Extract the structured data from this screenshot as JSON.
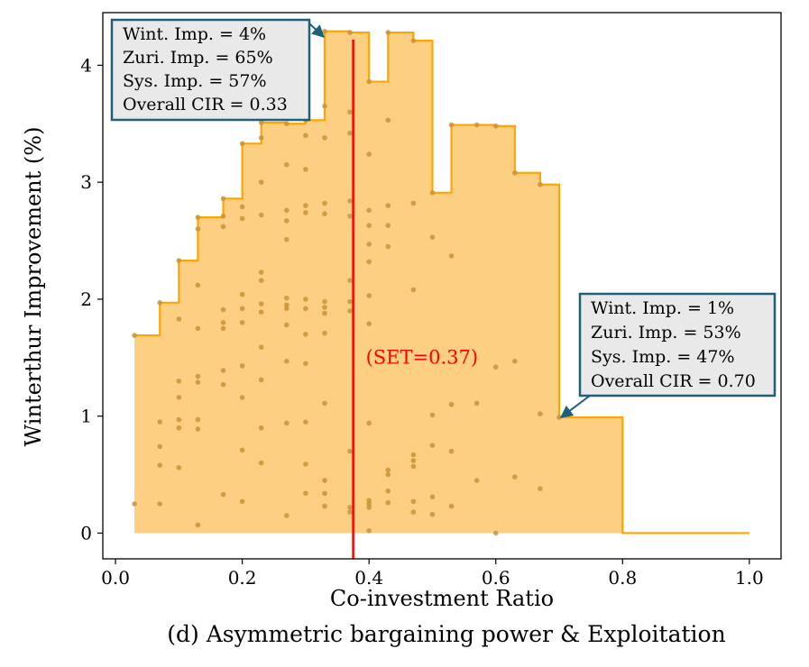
{
  "chart_data": {
    "type": "area",
    "caption": "(d) Asymmetric bargaining power & Exploitation",
    "xlabel": "Co-investment Ratio",
    "ylabel": "Winterthur Improvement (%)",
    "xlim": [
      -0.02,
      1.05
    ],
    "ylim": [
      -0.22,
      4.45
    ],
    "xticks": [
      0.0,
      0.2,
      0.4,
      0.6,
      0.8,
      1.0
    ],
    "xtick_labels": [
      "0.0",
      "0.2",
      "0.4",
      "0.6",
      "0.8",
      "1.0"
    ],
    "yticks": [
      0,
      1,
      2,
      3,
      4
    ],
    "ytick_labels": [
      "0",
      "1",
      "2",
      "3",
      "4"
    ],
    "colors": {
      "fill": "#fdca75",
      "edge": "#ffa500",
      "point": "#c8943a",
      "set_line": "#ff0000",
      "box_edge": "#1f5f7a",
      "box_fill": "#e9e9e9"
    },
    "frontier": [
      [
        0.03,
        1.69
      ],
      [
        0.07,
        1.97
      ],
      [
        0.1,
        2.33
      ],
      [
        0.13,
        2.7
      ],
      [
        0.17,
        2.86
      ],
      [
        0.2,
        3.33
      ],
      [
        0.23,
        3.51
      ],
      [
        0.27,
        3.5
      ],
      [
        0.3,
        3.53
      ],
      [
        0.33,
        4.29
      ],
      [
        0.37,
        4.28
      ],
      [
        0.4,
        3.86
      ],
      [
        0.43,
        4.28
      ],
      [
        0.47,
        4.21
      ],
      [
        0.5,
        2.91
      ],
      [
        0.53,
        3.49
      ],
      [
        0.57,
        3.49
      ],
      [
        0.6,
        3.48
      ],
      [
        0.63,
        3.08
      ],
      [
        0.67,
        2.98
      ],
      [
        0.7,
        0.99
      ],
      [
        0.8,
        0.0
      ],
      [
        1.0,
        0.0
      ]
    ],
    "points": [
      [
        0.03,
        1.69
      ],
      [
        0.03,
        0.25
      ],
      [
        0.07,
        1.97
      ],
      [
        0.07,
        0.95
      ],
      [
        0.07,
        0.74
      ],
      [
        0.07,
        0.58
      ],
      [
        0.07,
        0.25
      ],
      [
        0.1,
        2.33
      ],
      [
        0.1,
        1.83
      ],
      [
        0.1,
        1.3
      ],
      [
        0.1,
        1.16
      ],
      [
        0.1,
        0.97
      ],
      [
        0.1,
        0.9
      ],
      [
        0.1,
        0.56
      ],
      [
        0.13,
        2.7
      ],
      [
        0.13,
        2.6
      ],
      [
        0.13,
        2.12
      ],
      [
        0.13,
        1.75
      ],
      [
        0.13,
        1.34
      ],
      [
        0.13,
        1.29
      ],
      [
        0.13,
        0.97
      ],
      [
        0.13,
        0.89
      ],
      [
        0.13,
        0.07
      ],
      [
        0.17,
        2.86
      ],
      [
        0.17,
        2.62
      ],
      [
        0.17,
        2.71
      ],
      [
        0.17,
        1.91
      ],
      [
        0.17,
        1.8
      ],
      [
        0.17,
        1.75
      ],
      [
        0.17,
        1.39
      ],
      [
        0.17,
        1.27
      ],
      [
        0.17,
        0.33
      ],
      [
        0.2,
        3.33
      ],
      [
        0.2,
        2.79
      ],
      [
        0.2,
        2.69
      ],
      [
        0.2,
        2.04
      ],
      [
        0.2,
        1.92
      ],
      [
        0.2,
        1.8
      ],
      [
        0.2,
        1.43
      ],
      [
        0.2,
        1.16
      ],
      [
        0.2,
        0.71
      ],
      [
        0.2,
        0.27
      ],
      [
        0.23,
        3.51
      ],
      [
        0.23,
        3.38
      ],
      [
        0.23,
        3.0
      ],
      [
        0.23,
        2.72
      ],
      [
        0.23,
        2.23
      ],
      [
        0.23,
        2.16
      ],
      [
        0.23,
        1.96
      ],
      [
        0.23,
        1.89
      ],
      [
        0.23,
        1.59
      ],
      [
        0.23,
        1.31
      ],
      [
        0.23,
        0.9
      ],
      [
        0.23,
        0.6
      ],
      [
        0.27,
        3.5
      ],
      [
        0.27,
        3.15
      ],
      [
        0.27,
        2.76
      ],
      [
        0.27,
        2.67
      ],
      [
        0.27,
        2.51
      ],
      [
        0.27,
        2.01
      ],
      [
        0.27,
        1.95
      ],
      [
        0.27,
        1.92
      ],
      [
        0.27,
        1.78
      ],
      [
        0.27,
        1.47
      ],
      [
        0.27,
        0.94
      ],
      [
        0.27,
        0.15
      ],
      [
        0.3,
        3.53
      ],
      [
        0.3,
        3.4
      ],
      [
        0.3,
        3.11
      ],
      [
        0.3,
        2.8
      ],
      [
        0.3,
        2.74
      ],
      [
        0.3,
        2.0
      ],
      [
        0.3,
        1.92
      ],
      [
        0.3,
        1.7
      ],
      [
        0.3,
        1.45
      ],
      [
        0.3,
        0.95
      ],
      [
        0.3,
        0.59
      ],
      [
        0.3,
        0.34
      ],
      [
        0.33,
        4.29
      ],
      [
        0.33,
        3.65
      ],
      [
        0.33,
        3.38
      ],
      [
        0.33,
        2.82
      ],
      [
        0.33,
        2.73
      ],
      [
        0.33,
        1.98
      ],
      [
        0.33,
        1.93
      ],
      [
        0.33,
        1.88
      ],
      [
        0.33,
        1.71
      ],
      [
        0.33,
        1.11
      ],
      [
        0.33,
        0.45
      ],
      [
        0.33,
        0.34
      ],
      [
        0.33,
        0.23
      ],
      [
        0.37,
        4.28
      ],
      [
        0.37,
        3.6
      ],
      [
        0.37,
        3.42
      ],
      [
        0.37,
        2.84
      ],
      [
        0.37,
        2.71
      ],
      [
        0.37,
        2.16
      ],
      [
        0.37,
        1.98
      ],
      [
        0.37,
        1.9
      ],
      [
        0.37,
        0.7
      ],
      [
        0.37,
        0.22
      ],
      [
        0.37,
        0.18
      ],
      [
        0.4,
        3.86
      ],
      [
        0.4,
        3.24
      ],
      [
        0.4,
        2.76
      ],
      [
        0.4,
        2.63
      ],
      [
        0.4,
        2.47
      ],
      [
        0.4,
        2.32
      ],
      [
        0.4,
        2.03
      ],
      [
        0.4,
        1.79
      ],
      [
        0.4,
        0.94
      ],
      [
        0.4,
        0.28
      ],
      [
        0.4,
        0.25
      ],
      [
        0.4,
        0.22
      ],
      [
        0.4,
        0.02
      ],
      [
        0.43,
        4.28
      ],
      [
        0.43,
        3.53
      ],
      [
        0.43,
        2.8
      ],
      [
        0.43,
        2.63
      ],
      [
        0.43,
        2.45
      ],
      [
        0.43,
        0.54
      ],
      [
        0.43,
        0.5
      ],
      [
        0.43,
        0.36
      ],
      [
        0.43,
        0.26
      ],
      [
        0.47,
        4.21
      ],
      [
        0.47,
        2.82
      ],
      [
        0.47,
        2.08
      ],
      [
        0.47,
        0.67
      ],
      [
        0.47,
        0.62
      ],
      [
        0.47,
        0.57
      ],
      [
        0.47,
        0.27
      ],
      [
        0.47,
        0.18
      ],
      [
        0.5,
        2.91
      ],
      [
        0.5,
        2.53
      ],
      [
        0.5,
        1.01
      ],
      [
        0.5,
        0.75
      ],
      [
        0.5,
        0.31
      ],
      [
        0.5,
        0.16
      ],
      [
        0.53,
        3.49
      ],
      [
        0.53,
        2.37
      ],
      [
        0.53,
        1.1
      ],
      [
        0.53,
        0.7
      ],
      [
        0.53,
        0.23
      ],
      [
        0.57,
        3.49
      ],
      [
        0.57,
        1.11
      ],
      [
        0.57,
        0.45
      ],
      [
        0.6,
        3.48
      ],
      [
        0.6,
        1.42
      ],
      [
        0.6,
        0.0
      ],
      [
        0.63,
        3.08
      ],
      [
        0.63,
        1.47
      ],
      [
        0.63,
        0.48
      ],
      [
        0.67,
        2.98
      ],
      [
        0.67,
        1.02
      ],
      [
        0.67,
        0.38
      ],
      [
        0.7,
        0.99
      ]
    ],
    "set_line": {
      "x": 0.375,
      "label": "(SET=0.37)"
    },
    "annotations": [
      {
        "lines": [
          "Wint. Imp. = 4%",
          "Zuri. Imp. = 65%",
          "Sys. Imp. = 57%",
          "Overall CIR = 0.33"
        ],
        "target": [
          0.33,
          4.29
        ]
      },
      {
        "lines": [
          "Wint. Imp. = 1%",
          "Zuri. Imp. = 53%",
          "Sys. Imp. = 47%",
          "Overall CIR = 0.70"
        ],
        "target": [
          0.7,
          0.99
        ]
      }
    ]
  }
}
